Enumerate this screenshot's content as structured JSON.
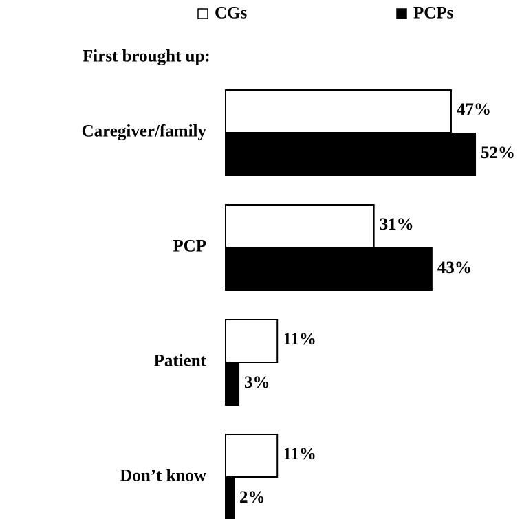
{
  "chart_data": {
    "type": "hbar",
    "title": "First brought up:",
    "categories": [
      "Caregiver/family",
      "PCP",
      "Patient",
      "Don’t know"
    ],
    "series": [
      {
        "name": "CGs",
        "color": "#ffffff",
        "values": [
          47,
          31,
          11,
          11
        ],
        "value_labels": [
          "47%",
          "31%",
          "11%",
          "11%"
        ]
      },
      {
        "name": "PCPs",
        "color": "#000000",
        "values": [
          52,
          43,
          3,
          2
        ],
        "value_labels": [
          "52%",
          "43%",
          "3%",
          "2%"
        ]
      }
    ]
  }
}
